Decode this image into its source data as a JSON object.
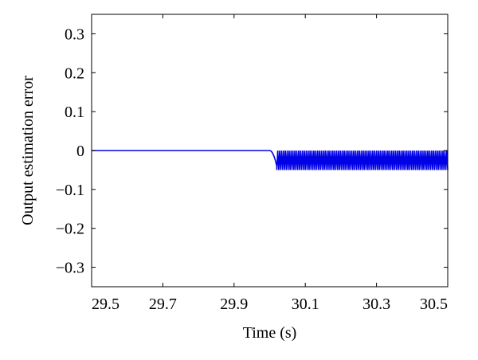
{
  "chart_data": {
    "type": "line",
    "title": "",
    "xlabel": "Time (s)",
    "ylabel": "Output estimation error",
    "xlim": [
      29.5,
      30.5
    ],
    "ylim": [
      -0.35,
      0.35
    ],
    "xticks": [
      29.5,
      29.7,
      29.9,
      30.1,
      30.3,
      30.5
    ],
    "xtick_labels": [
      "29.5",
      "29.7",
      "29.9",
      "30.1",
      "30.3",
      "30.5"
    ],
    "yticks": [
      0.3,
      0.2,
      0.1,
      0,
      -0.1,
      -0.2,
      -0.3
    ],
    "ytick_labels": [
      "0.3",
      "0.2",
      "0.1",
      "0",
      "−0.1",
      "−0.2",
      "−0.3"
    ],
    "grid": false,
    "series": [
      {
        "color": "#0000e6",
        "segments": [
          {
            "kind": "constant",
            "x": [
              29.5,
              30.0
            ],
            "y": 0.0
          },
          {
            "kind": "transient",
            "x": [
              30.0,
              30.02
            ],
            "y": [
              0.0,
              -0.04
            ]
          },
          {
            "kind": "oscillation",
            "x": [
              30.02,
              30.5
            ],
            "y_min": -0.05,
            "y_max": 0.0,
            "cycles": 90
          }
        ]
      }
    ]
  }
}
